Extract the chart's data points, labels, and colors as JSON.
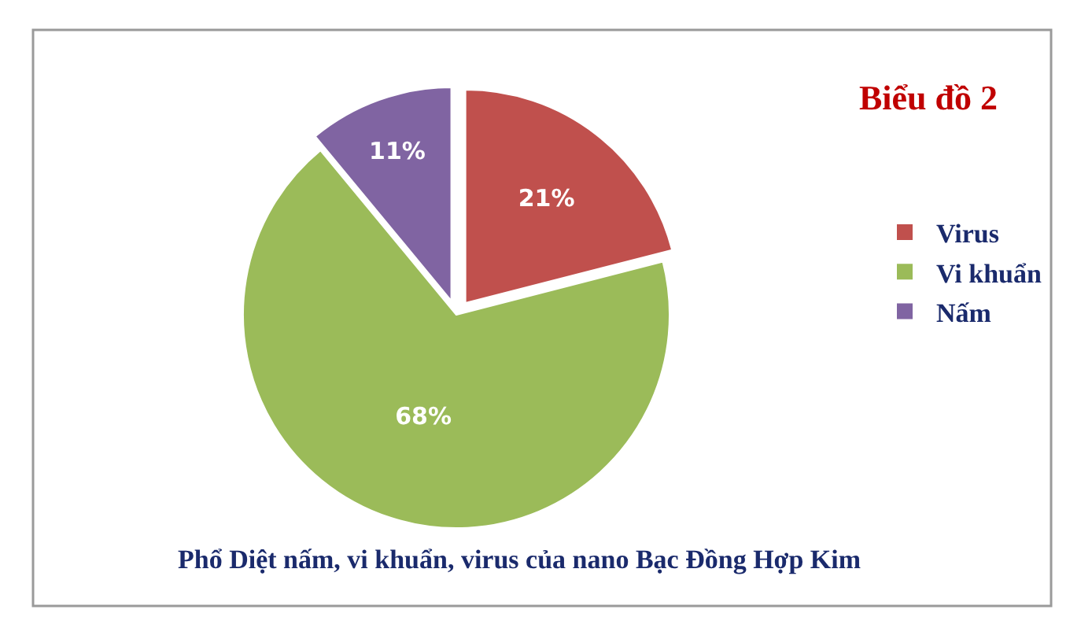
{
  "chart_data": {
    "type": "pie",
    "title": "Biểu đồ 2",
    "categories": [
      "Virus",
      "Vi khuẩn",
      "Nấm"
    ],
    "values": [
      21,
      68,
      11
    ],
    "colors": [
      "#c0504d",
      "#9bbb59",
      "#8064a2"
    ],
    "value_labels": [
      "21%",
      "68%",
      "11%"
    ],
    "legend": "right",
    "annotations": [
      "Phổ Diệt nấm, vi khuẩn, virus của nano Bạc Đồng Hợp Kim"
    ]
  }
}
